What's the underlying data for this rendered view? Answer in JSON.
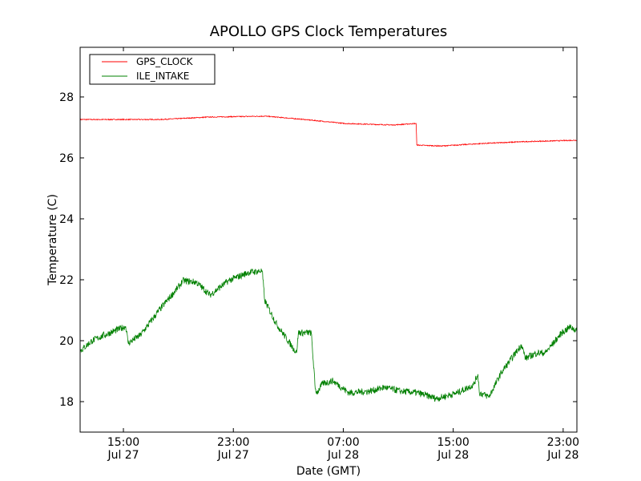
{
  "chart_data": {
    "type": "line",
    "title": "APOLLO GPS Clock Temperatures",
    "xlabel": "Date (GMT)",
    "ylabel": "Temperature (C)",
    "x_units": "hours since Jul 27 00:00 GMT",
    "xlim": [
      11.85,
      48.0
    ],
    "ylim": [
      17,
      29.63
    ],
    "yticks": [
      18,
      20,
      22,
      24,
      26,
      28
    ],
    "ytick_labels": [
      "18",
      "20",
      "22",
      "24",
      "26",
      "28"
    ],
    "xticks": [
      15,
      23,
      31,
      39,
      47
    ],
    "xtick_labels": [
      [
        "15:00",
        "Jul 27"
      ],
      [
        "23:00",
        "Jul 27"
      ],
      [
        "07:00",
        "Jul 28"
      ],
      [
        "15:00",
        "Jul 28"
      ],
      [
        "23:00",
        "Jul 28"
      ]
    ],
    "grid": false,
    "legend_position": "top-left",
    "series": [
      {
        "name": "GPS_CLOCK",
        "color": "#ff0000",
        "x": [
          11.85,
          14.7,
          17.7,
          21.2,
          25.3,
          28.2,
          31.1,
          34.6,
          36.3,
          36.35,
          38.1,
          41.0,
          44.0,
          48.0
        ],
        "y": [
          27.26,
          27.26,
          27.26,
          27.34,
          27.37,
          27.26,
          27.13,
          27.08,
          27.13,
          26.42,
          26.39,
          26.47,
          26.53,
          26.58
        ]
      },
      {
        "name": "ILE_INTAKE",
        "color": "#008000",
        "x": [
          11.85,
          12.72,
          13.6,
          15.17,
          15.35,
          16.23,
          17.69,
          19.15,
          19.3,
          20.3,
          21.3,
          22.65,
          24.1,
          25.1,
          25.28,
          26.16,
          27.6,
          27.73,
          28.67,
          28.96,
          29.08,
          29.5,
          30.25,
          31.4,
          32.9,
          34.0,
          35.2,
          36.4,
          37.8,
          39.3,
          40.47,
          40.8,
          40.9,
          41.6,
          42.5,
          43.97,
          44.26,
          45.1,
          45.7,
          46.9,
          47.5,
          48.0
        ],
        "y": [
          19.66,
          20.0,
          20.18,
          20.47,
          19.92,
          20.18,
          21.05,
          21.84,
          21.97,
          21.92,
          21.5,
          21.97,
          22.24,
          22.29,
          21.32,
          20.53,
          19.6,
          20.26,
          20.26,
          18.42,
          18.29,
          18.6,
          18.68,
          18.29,
          18.34,
          18.47,
          18.34,
          18.29,
          18.1,
          18.29,
          18.55,
          18.9,
          18.29,
          18.16,
          18.95,
          19.87,
          19.42,
          19.6,
          19.6,
          20.26,
          20.45,
          20.34
        ]
      }
    ]
  }
}
